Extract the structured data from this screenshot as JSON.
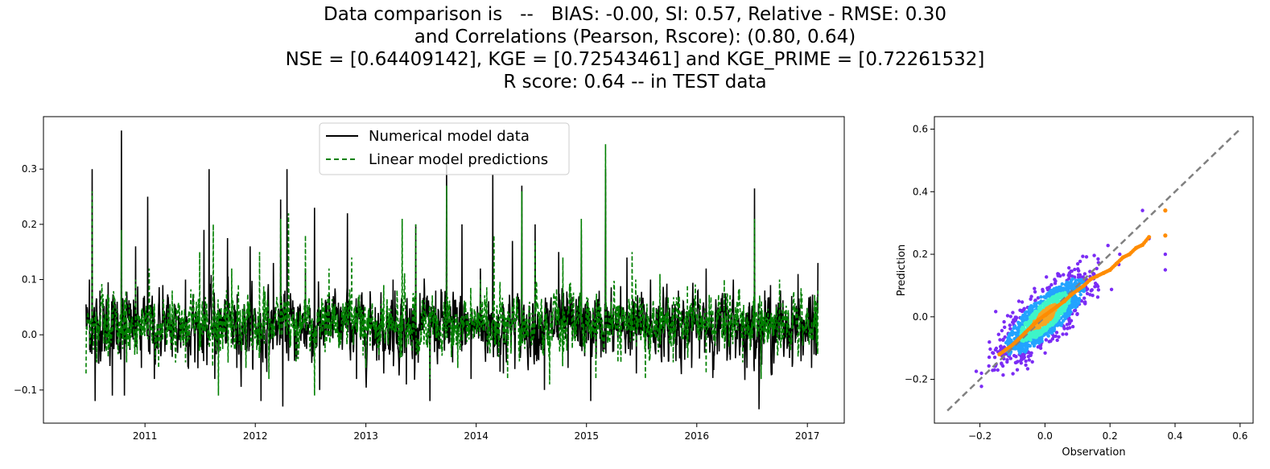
{
  "title_lines": [
    "Data comparison is   --   BIAS: -0.00, SI: 0.57, Relative - RMSE: 0.30",
    "and Correlations (Pearson, Rscore): (0.80, 0.64)",
    "NSE = [0.64409142], KGE = [0.72543461] and KGE_PRIME = [0.72261532]",
    "R score: 0.64 -- in TEST data"
  ],
  "colors": {
    "numerical": "#000000",
    "linear": "#008000",
    "identity": "#808080",
    "quantiles": "#ff8c00",
    "scatter_low": "#7b2cf5",
    "scatter_mid": "#23a3ff",
    "scatter_high": "#3ef5c8",
    "scatter_core": "#f5a623"
  },
  "chart_data": [
    {
      "type": "line",
      "title": "",
      "xlabel": "",
      "ylabel": "",
      "xlim": [
        "2010-01-30",
        "2017-05-03"
      ],
      "ylim": [
        -0.16,
        0.395
      ],
      "xticks": [
        "2011",
        "2012",
        "2013",
        "2014",
        "2015",
        "2016",
        "2017"
      ],
      "yticks": [
        "−0.1",
        "0.0",
        "0.1",
        "0.2",
        "0.3"
      ],
      "legend": {
        "position": "upper center",
        "entries": [
          "Numerical model data",
          "Linear model predictions"
        ]
      },
      "series": [
        {
          "name": "Numerical model data",
          "style": "solid",
          "points": [
            [
              "2010-06-20",
              0.055
            ],
            [
              "2010-07-01",
              0.1
            ],
            [
              "2010-07-10",
              0.3
            ],
            [
              "2010-07-20",
              -0.12
            ],
            [
              "2010-08-05",
              0.08
            ],
            [
              "2010-08-20",
              -0.03
            ],
            [
              "2010-09-01",
              0.095
            ],
            [
              "2010-09-15",
              -0.11
            ],
            [
              "2010-10-01",
              0.06
            ],
            [
              "2010-10-15",
              0.37
            ],
            [
              "2010-10-25",
              -0.11
            ],
            [
              "2010-11-15",
              0.03
            ],
            [
              "2010-12-01",
              0.16
            ],
            [
              "2010-12-20",
              -0.06
            ],
            [
              "2011-01-10",
              0.25
            ],
            [
              "2011-02-01",
              -0.08
            ],
            [
              "2011-03-01",
              0.09
            ],
            [
              "2011-04-01",
              -0.04
            ],
            [
              "2011-05-15",
              0.1
            ],
            [
              "2011-06-15",
              -0.05
            ],
            [
              "2011-07-15",
              0.19
            ],
            [
              "2011-08-01",
              0.3
            ],
            [
              "2011-08-20",
              -0.08
            ],
            [
              "2011-10-01",
              0.175
            ],
            [
              "2011-11-01",
              -0.06
            ],
            [
              "2011-12-15",
              0.16
            ],
            [
              "2012-01-20",
              -0.12
            ],
            [
              "2012-03-01",
              0.13
            ],
            [
              "2012-03-25",
              0.245
            ],
            [
              "2012-04-01",
              -0.13
            ],
            [
              "2012-04-15",
              0.3
            ],
            [
              "2012-05-15",
              -0.04
            ],
            [
              "2012-06-15",
              0.12
            ],
            [
              "2012-07-15",
              0.23
            ],
            [
              "2012-08-01",
              -0.1
            ],
            [
              "2012-09-15",
              0.07
            ],
            [
              "2012-11-01",
              0.22
            ],
            [
              "2012-12-01",
              -0.08
            ],
            [
              "2013-02-01",
              0.05
            ],
            [
              "2013-03-01",
              -0.07
            ],
            [
              "2013-04-01",
              0.1
            ],
            [
              "2013-05-15",
              -0.09
            ],
            [
              "2013-06-15",
              0.2
            ],
            [
              "2013-08-01",
              -0.12
            ],
            [
              "2013-08-20",
              0.08
            ],
            [
              "2013-09-25",
              0.31
            ],
            [
              "2013-10-15",
              -0.05
            ],
            [
              "2013-11-15",
              0.2
            ],
            [
              "2013-12-15",
              -0.08
            ],
            [
              "2014-01-15",
              0.12
            ],
            [
              "2014-02-25",
              0.29
            ],
            [
              "2014-04-01",
              -0.07
            ],
            [
              "2014-05-01",
              0.17
            ],
            [
              "2014-06-01",
              0.27
            ],
            [
              "2014-07-15",
              0.2
            ],
            [
              "2014-08-15",
              -0.1
            ],
            [
              "2014-10-01",
              0.15
            ],
            [
              "2014-11-01",
              -0.06
            ],
            [
              "2014-12-15",
              0.19
            ],
            [
              "2015-01-15",
              -0.12
            ],
            [
              "2015-03-05",
              0.3
            ],
            [
              "2015-04-01",
              -0.03
            ],
            [
              "2015-05-15",
              0.14
            ],
            [
              "2015-06-15",
              -0.07
            ],
            [
              "2015-08-01",
              0.1
            ],
            [
              "2015-09-15",
              -0.04
            ],
            [
              "2015-11-01",
              0.08
            ],
            [
              "2015-12-15",
              -0.06
            ],
            [
              "2016-02-01",
              0.12
            ],
            [
              "2016-03-15",
              -0.03
            ],
            [
              "2016-05-01",
              0.1
            ],
            [
              "2016-06-15",
              -0.06
            ],
            [
              "2016-07-10",
              0.265
            ],
            [
              "2016-07-25",
              -0.135
            ],
            [
              "2016-09-01",
              0.09
            ],
            [
              "2016-10-15",
              -0.04
            ],
            [
              "2016-12-01",
              0.11
            ],
            [
              "2017-01-15",
              -0.06
            ],
            [
              "2017-02-05",
              0.13
            ]
          ]
        },
        {
          "name": "Linear model predictions",
          "style": "dashed",
          "points": [
            [
              "2010-06-20",
              -0.07
            ],
            [
              "2010-07-10",
              0.26
            ],
            [
              "2010-07-25",
              -0.05
            ],
            [
              "2010-08-10",
              0.07
            ],
            [
              "2010-09-01",
              -0.04
            ],
            [
              "2010-10-15",
              0.19
            ],
            [
              "2010-11-01",
              -0.05
            ],
            [
              "2010-12-01",
              0.1
            ],
            [
              "2011-01-15",
              0.12
            ],
            [
              "2011-02-15",
              -0.06
            ],
            [
              "2011-04-01",
              0.08
            ],
            [
              "2011-05-15",
              -0.05
            ],
            [
              "2011-07-01",
              0.15
            ],
            [
              "2011-08-15",
              0.2
            ],
            [
              "2011-09-01",
              -0.11
            ],
            [
              "2011-10-15",
              0.12
            ],
            [
              "2011-12-01",
              -0.06
            ],
            [
              "2012-01-15",
              0.15
            ],
            [
              "2012-02-15",
              -0.08
            ],
            [
              "2012-03-25",
              0.21
            ],
            [
              "2012-04-20",
              0.22
            ],
            [
              "2012-05-15",
              -0.05
            ],
            [
              "2012-06-15",
              0.18
            ],
            [
              "2012-07-15",
              -0.11
            ],
            [
              "2012-09-01",
              0.12
            ],
            [
              "2012-11-15",
              0.14
            ],
            [
              "2013-01-01",
              -0.06
            ],
            [
              "2013-03-01",
              0.09
            ],
            [
              "2013-05-01",
              0.21
            ],
            [
              "2013-06-15",
              0.2
            ],
            [
              "2013-08-01",
              -0.08
            ],
            [
              "2013-09-25",
              0.27
            ],
            [
              "2013-11-01",
              -0.06
            ],
            [
              "2014-01-15",
              0.1
            ],
            [
              "2014-03-01",
              0.18
            ],
            [
              "2014-04-15",
              -0.08
            ],
            [
              "2014-06-01",
              0.26
            ],
            [
              "2014-07-15",
              0.17
            ],
            [
              "2014-09-01",
              -0.09
            ],
            [
              "2014-10-15",
              0.14
            ],
            [
              "2014-12-15",
              0.21
            ],
            [
              "2015-02-01",
              -0.08
            ],
            [
              "2015-03-05",
              0.345
            ],
            [
              "2015-04-15",
              -0.05
            ],
            [
              "2015-06-01",
              0.15
            ],
            [
              "2015-07-15",
              -0.08
            ],
            [
              "2015-09-01",
              0.11
            ],
            [
              "2015-10-15",
              -0.05
            ],
            [
              "2015-12-01",
              0.09
            ],
            [
              "2016-02-01",
              -0.07
            ],
            [
              "2016-04-01",
              0.1
            ],
            [
              "2016-06-01",
              -0.05
            ],
            [
              "2016-07-10",
              0.21
            ],
            [
              "2016-08-01",
              -0.08
            ],
            [
              "2016-10-01",
              0.1
            ],
            [
              "2016-12-01",
              -0.04
            ],
            [
              "2017-02-05",
              0.08
            ]
          ]
        }
      ]
    },
    {
      "type": "scatter",
      "title": "",
      "xlabel": "Observation",
      "ylabel": "Prediction",
      "xlim": [
        -0.34,
        0.64
      ],
      "ylim": [
        -0.34,
        0.64
      ],
      "xticks": [
        "−0.2",
        "0.0",
        "0.2",
        "0.4",
        "0.6"
      ],
      "yticks": [
        "−0.2",
        "0.0",
        "0.2",
        "0.4",
        "0.6"
      ],
      "identity_line": [
        [
          -0.3,
          -0.3
        ],
        [
          0.6,
          0.6
        ]
      ],
      "density_cloud": {
        "center": [
          0.0,
          0.0
        ],
        "spread_x": 0.065,
        "correlation": 0.8,
        "colormap": "purple-cyan"
      },
      "outliers": [
        [
          0.3,
          0.34
        ],
        [
          0.37,
          0.15
        ],
        [
          0.37,
          0.2
        ],
        [
          0.37,
          0.26
        ],
        [
          0.32,
          0.25
        ],
        [
          0.23,
          0.2
        ]
      ],
      "quantiles": [
        [
          -0.14,
          -0.12
        ],
        [
          -0.12,
          -0.105
        ],
        [
          -0.1,
          -0.09
        ],
        [
          -0.08,
          -0.07
        ],
        [
          -0.06,
          -0.05
        ],
        [
          -0.04,
          -0.03
        ],
        [
          -0.02,
          -0.01
        ],
        [
          0.0,
          0.005
        ],
        [
          0.02,
          0.02
        ],
        [
          0.04,
          0.035
        ],
        [
          0.06,
          0.05
        ],
        [
          0.08,
          0.07
        ],
        [
          0.1,
          0.085
        ],
        [
          0.12,
          0.1
        ],
        [
          0.14,
          0.12
        ],
        [
          0.16,
          0.13
        ],
        [
          0.18,
          0.14
        ],
        [
          0.2,
          0.15
        ],
        [
          0.22,
          0.17
        ],
        [
          0.24,
          0.19
        ],
        [
          0.26,
          0.2
        ],
        [
          0.28,
          0.22
        ],
        [
          0.3,
          0.23
        ],
        [
          0.32,
          0.255
        ],
        [
          0.37,
          0.26
        ],
        [
          0.37,
          0.34
        ]
      ]
    }
  ]
}
